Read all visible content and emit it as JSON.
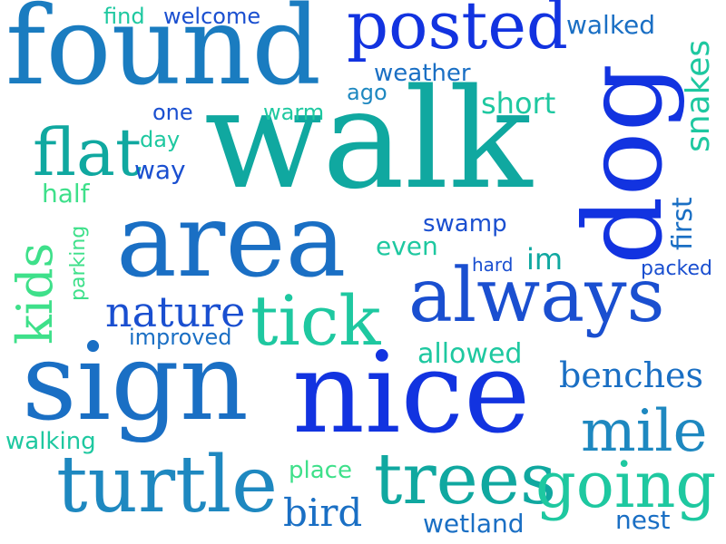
{
  "palette": {
    "blue": "#1233e0",
    "mid_blue": "#1a6fc4",
    "steel": "#1e88c0",
    "teal": "#10a8a0",
    "green_teal": "#1ec8a0",
    "green": "#3ee08a"
  },
  "words": [
    {
      "text": "found",
      "color": "#1a7cc0"
    },
    {
      "text": "posted",
      "color": "#1233e0"
    },
    {
      "text": "walk",
      "color": "#10a8a0"
    },
    {
      "text": "dog",
      "color": "#1233e0"
    },
    {
      "text": "area",
      "color": "#1a6fc4"
    },
    {
      "text": "always",
      "color": "#1a4fd0"
    },
    {
      "text": "sign",
      "color": "#1a6fc4"
    },
    {
      "text": "nice",
      "color": "#1233e0"
    },
    {
      "text": "trees",
      "color": "#10a8a0"
    },
    {
      "text": "turtle",
      "color": "#1e88c0"
    },
    {
      "text": "going",
      "color": "#1ec8a0"
    },
    {
      "text": "tick",
      "color": "#1ec8a0"
    },
    {
      "text": "flat",
      "color": "#10a8a0"
    },
    {
      "text": "kids",
      "color": "#3ee08a"
    },
    {
      "text": "mile",
      "color": "#1e88c0"
    },
    {
      "text": "benches",
      "color": "#1a6fc4"
    },
    {
      "text": "nature",
      "color": "#1a4fd0"
    },
    {
      "text": "bird",
      "color": "#1a6fc4"
    },
    {
      "text": "snakes",
      "color": "#1ec8a0"
    },
    {
      "text": "walked",
      "color": "#1a6fc4"
    },
    {
      "text": "short",
      "color": "#1ec8a0"
    },
    {
      "text": "swamp",
      "color": "#1a4fd0"
    },
    {
      "text": "allowed",
      "color": "#1ec8a0"
    },
    {
      "text": "first",
      "color": "#1a6fc4"
    },
    {
      "text": "weather",
      "color": "#1a6fc4"
    },
    {
      "text": "welcome",
      "color": "#1a4fd0"
    },
    {
      "text": "find",
      "color": "#1ec8a0"
    },
    {
      "text": "ago",
      "color": "#1e88c0"
    },
    {
      "text": "one",
      "color": "#1a4fd0"
    },
    {
      "text": "warm",
      "color": "#1ec8a0"
    },
    {
      "text": "day",
      "color": "#1ec8a0"
    },
    {
      "text": "way",
      "color": "#1a4fd0"
    },
    {
      "text": "half",
      "color": "#3ee08a"
    },
    {
      "text": "even",
      "color": "#1ec8a0"
    },
    {
      "text": "im",
      "color": "#10a8a0"
    },
    {
      "text": "hard",
      "color": "#1a4fd0"
    },
    {
      "text": "packed",
      "color": "#1a4fd0"
    },
    {
      "text": "parking",
      "color": "#3ee08a"
    },
    {
      "text": "improved",
      "color": "#1a6fc4"
    },
    {
      "text": "walking",
      "color": "#1ec8a0"
    },
    {
      "text": "place",
      "color": "#3ee08a"
    },
    {
      "text": "wetland",
      "color": "#1a6fc4"
    },
    {
      "text": "nest",
      "color": "#1a6fc4"
    }
  ]
}
